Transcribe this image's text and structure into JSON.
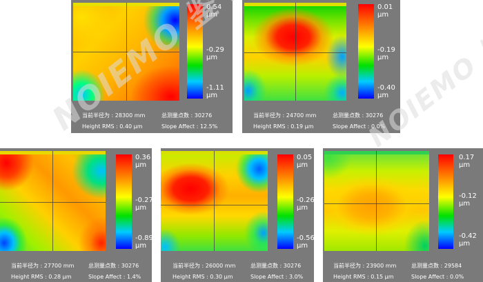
{
  "panels": [
    {
      "scale": {
        "max": "0.54",
        "max_unit": "μm",
        "mid": "-0.29",
        "mid_unit": "μm",
        "min": "-1.11",
        "min_unit": "μm"
      },
      "info": {
        "radius": "当前半径为 : 28300 mm",
        "points": "总测量点数 : 30276",
        "rms": "Height RMS : 0.40 μm",
        "slope": "Slope Affect : 12.5%"
      }
    },
    {
      "scale": {
        "max": "0.01",
        "max_unit": "μm",
        "mid": "-0.19",
        "mid_unit": "μm",
        "min": "-0.40",
        "min_unit": "μm"
      },
      "info": {
        "radius": "当前半径为 : 24700 mm",
        "points": "总测量点数 : 30276",
        "rms": "Height RMS : 0.19 μm",
        "slope": "Slope Affect : 0.0%"
      }
    },
    {
      "scale": {
        "max": "0.36",
        "max_unit": "μm",
        "mid": "-0.27",
        "mid_unit": "μm",
        "min": "-0.89",
        "min_unit": "μm"
      },
      "info": {
        "radius": "当前半径为 : 27700 mm",
        "points": "总测量点数 : 30276",
        "rms": "Height RMS : 0.28 μm",
        "slope": "Slope Affect : 1.4%"
      }
    },
    {
      "scale": {
        "max": "0.05",
        "max_unit": "μm",
        "mid": "-0.26",
        "mid_unit": "μm",
        "min": "-0.56",
        "min_unit": "μm"
      },
      "info": {
        "radius": "当前半径为 : 26000 mm",
        "points": "总测量点数 : 30276",
        "rms": "Height RMS : 0.30 μm",
        "slope": "Slope Affect : 3.0%"
      }
    },
    {
      "scale": {
        "max": "0.17",
        "max_unit": "μm",
        "mid": "-0.12",
        "mid_unit": "μm",
        "min": "-0.42",
        "min_unit": "μm"
      },
      "info": {
        "radius": "当前半径为 : 23900 mm",
        "points": "总测量点数 : 29584",
        "rms": "Height RMS : 0.15 μm",
        "slope": "Slope Affect : 0.0%"
      }
    }
  ],
  "watermark": "NOIEMO 鉴 影",
  "colors": {
    "panel_bg": "#7a7a7a",
    "scale_top": "#ff0000",
    "scale_bottom": "#0000ff"
  }
}
